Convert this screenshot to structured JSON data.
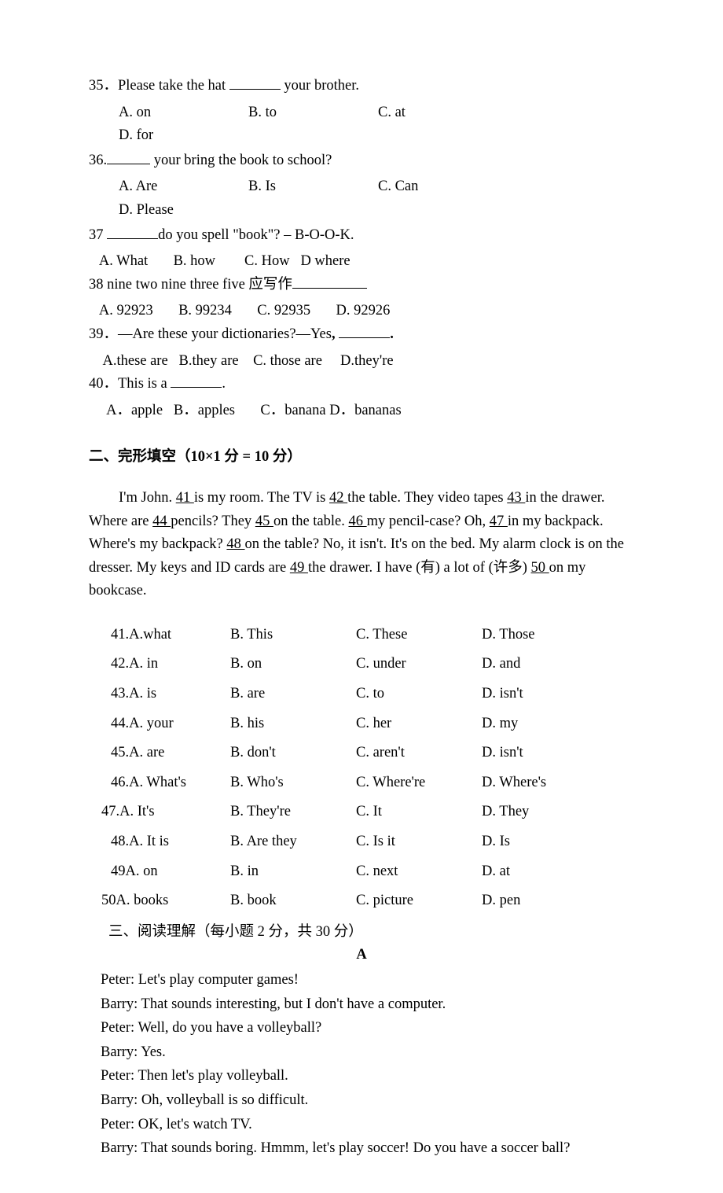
{
  "q35": {
    "stem_before": " 35．Please take the hat ",
    "stem_after": " your brother.",
    "a": "A. on",
    "b": "B. to",
    "c": "C. at",
    "d": "D. for"
  },
  "q36": {
    "stem_before": "36.",
    "stem_after": " your bring the book to school?",
    "a": "A. Are",
    "b": "B. Is",
    "c": "C. Can",
    "d": "D. Please"
  },
  "q37": {
    "stem_before": "37 ",
    "stem_after": "do you spell \"book\"? – B-O-O-K.",
    "options_text": "   A. What       B. how        C. How   D where"
  },
  "q38": {
    "stem": "38 nine two nine three five  应写作",
    "options_text": "   A. 92923       B. 99234       C. 92935       D. 92926"
  },
  "q39": {
    "stem_before": "39．—Are these your dictionaries?—Yes",
    "comma": ", ",
    "period": ".",
    "options_text": "    A.these are   B.they are    C. those are     D.they're"
  },
  "q40": {
    "stem_before": "40．This is a ",
    "stem_after": ".",
    "options_text": "     A．apple   B．apples       C．banana D．bananas"
  },
  "section2": {
    "header": "二、完形填空（10×1 分  = 10 分）",
    "passage": {
      "p1": "I'm John.  ",
      "b41": "  41 ",
      "p2": " is my room. The TV is  ",
      "b42": "  42  ",
      "p3": " the table. They video tapes  ",
      "b43": "  43  ",
      "p4": "in the drawer. Where are  ",
      "b44": "  44   ",
      "p5": " pencils? They  ",
      "b45": "  45 ",
      "p6": " on the table.  ",
      "b46": "  46  ",
      "p7": " my pencil-case? Oh,  ",
      "b47": "  47   ",
      "p8": " in my backpack. Where's my backpack?  ",
      "b48": "  48  ",
      "p9": " on the table? No, it isn't. It's on the bed. My alarm clock is on the dresser. My keys and ID cards are  ",
      "b49": "  49 ",
      "p10": " the drawer. I have (有) a lot of (许多)  ",
      "b50": "  50  ",
      "p11": " on my bookcase."
    },
    "rows": [
      {
        "num": " 41.A.what",
        "b": "B. This",
        "c": "C. These",
        "d": "D. Those",
        "indent": "indent28"
      },
      {
        "num": " 42.A. in",
        "b": "B. on",
        "c": "C. under",
        "d": "D. and",
        "indent": "indent28"
      },
      {
        "num": " 43.A. is",
        "b": "B. are",
        "c": "C. to",
        "d": "D. isn't",
        "indent": "indent28"
      },
      {
        "num": "44.A. your",
        "b": "B. his",
        "c": "C. her",
        "d": "D. my",
        "indent": "indent28"
      },
      {
        "num": "45.A. are",
        "b": "B. don't",
        "c": "C. aren't",
        "d": "D. isn't",
        "indent": "indent28"
      },
      {
        "num": " 46.A. What's",
        "b": "B. Who's",
        "c": "C. Where're",
        "d": "D. Where's",
        "indent": "indent28"
      },
      {
        "num": "47.A. It's",
        "b": "B. They're",
        "c": "C. It",
        "d": "D. They",
        "indent": "indent16"
      },
      {
        "num": " 48.A. It is",
        "b": "B. Are they",
        "c": "C. Is it",
        "d": "D. Is",
        "indent": "indent28"
      },
      {
        "num": " 49A. on",
        "b": "B. in",
        "c": "C. next",
        "d": "D. at",
        "indent": "indent28"
      },
      {
        "num": "50A. books",
        "b": "B. book",
        "c": "C. picture",
        "d": "D. pen",
        "indent": "indent16"
      }
    ]
  },
  "section3": {
    "header": "三、阅读理解（每小题 2 分，共 30 分）",
    "title": "A",
    "lines": [
      "Peter: Let's play computer games!",
      "Barry: That sounds interesting, but I don't have a computer.",
      "Peter: Well, do you have a volleyball?",
      "Barry: Yes.",
      "Peter: Then let's play volleyball.",
      "Barry: Oh, volleyball is so difficult.",
      "Peter: OK, let's watch TV.",
      "Barry: That sounds boring. Hmmm, let's play soccer! Do you have a soccer ball?"
    ]
  }
}
